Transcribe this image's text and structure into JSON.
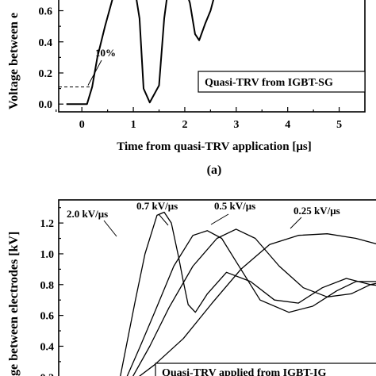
{
  "chart_data": [
    {
      "type": "line",
      "panel_label": "(a)",
      "ylabel": "Voltage between e",
      "xlabel": "Time from quasi-TRV application [μs]",
      "legend_box": "Quasi-TRV from IGBT-SG",
      "annotation": "10%",
      "xlim": [
        -0.45,
        5.5
      ],
      "ylim": [
        -0.05,
        0.72
      ],
      "x_ticks": [
        0,
        1,
        2,
        3,
        4,
        5
      ],
      "y_ticks": [
        0.0,
        0.2,
        0.4,
        0.6
      ],
      "x_tick_labels": [
        "0",
        "1",
        "2",
        "3",
        "4",
        "5"
      ],
      "y_tick_labels": [
        "0.0",
        "0.2",
        "0.4",
        "0.6"
      ],
      "series": [
        {
          "x": [
            -0.3,
            0.1,
            0.2,
            0.3,
            0.45,
            0.6,
            0.75,
            0.9,
            1.0,
            1.12,
            1.2,
            1.32,
            1.5,
            1.6,
            1.7,
            1.82,
            1.95,
            2.1,
            2.2,
            2.28,
            2.4,
            2.5,
            2.58
          ],
          "y": [
            0.0,
            0.0,
            0.11,
            0.3,
            0.5,
            0.68,
            0.76,
            0.8,
            0.8,
            0.55,
            0.1,
            0.01,
            0.12,
            0.55,
            0.8,
            0.85,
            0.8,
            0.65,
            0.45,
            0.41,
            0.52,
            0.6,
            0.7
          ]
        }
      ],
      "reference_level": 0.11
    },
    {
      "type": "line",
      "ylabel": "ge between electrodes [kV]",
      "legend_box": "Quasi-TRV applied from IGBT-IG",
      "xlim": [
        0,
        6.8
      ],
      "ylim": [
        0.15,
        1.35
      ],
      "y_ticks": [
        0.2,
        0.4,
        0.6,
        0.8,
        1.0,
        1.2
      ],
      "y_tick_labels": [
        "0.2",
        "0.4",
        "0.6",
        "0.8",
        "1.0",
        "1.2"
      ],
      "series": [
        {
          "name": "2.0 kV/μs",
          "x": [
            1.25,
            1.6,
            1.8,
            2.05,
            2.2,
            2.35,
            2.5,
            2.6,
            2.7,
            2.85,
            3.1,
            3.5,
            4.0,
            4.5,
            5.0,
            5.5,
            6.0,
            6.5,
            6.8
          ],
          "y": [
            0.15,
            0.7,
            1.0,
            1.25,
            1.27,
            1.2,
            0.98,
            0.82,
            0.67,
            0.62,
            0.74,
            0.88,
            0.82,
            0.7,
            0.68,
            0.78,
            0.84,
            0.8,
            0.79
          ]
        },
        {
          "name": "0.7 kV/μs",
          "x": [
            1.35,
            1.7,
            2.0,
            2.4,
            2.8,
            3.1,
            3.4,
            3.7,
            4.2,
            4.8,
            5.3,
            5.8,
            6.2,
            6.8
          ],
          "y": [
            0.15,
            0.4,
            0.62,
            0.92,
            1.12,
            1.15,
            1.1,
            0.95,
            0.7,
            0.62,
            0.66,
            0.76,
            0.82,
            0.82
          ]
        },
        {
          "name": "0.5 kV/μs",
          "x": [
            1.45,
            1.9,
            2.3,
            2.8,
            3.3,
            3.7,
            4.1,
            4.6,
            5.1,
            5.6,
            6.1,
            6.5,
            6.8
          ],
          "y": [
            0.15,
            0.4,
            0.65,
            0.92,
            1.1,
            1.16,
            1.1,
            0.92,
            0.78,
            0.72,
            0.74,
            0.8,
            0.82
          ]
        },
        {
          "name": "0.25 kV/μs",
          "x": [
            1.45,
            2.0,
            2.6,
            3.2,
            3.8,
            4.4,
            5.0,
            5.6,
            6.2,
            6.8
          ],
          "y": [
            0.15,
            0.28,
            0.45,
            0.68,
            0.9,
            1.06,
            1.12,
            1.13,
            1.1,
            1.05
          ]
        }
      ]
    }
  ]
}
